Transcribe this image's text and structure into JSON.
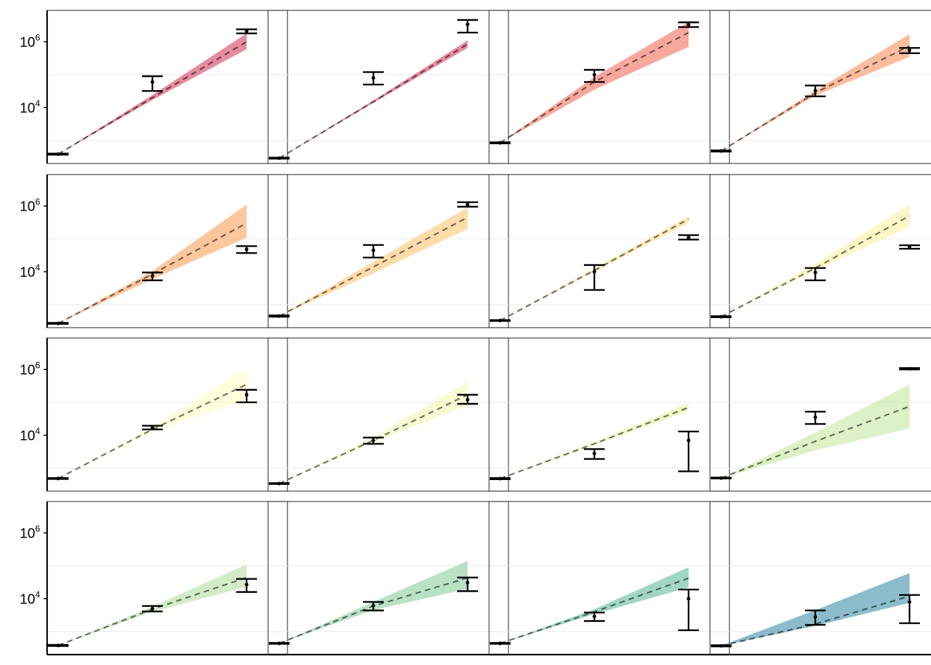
{
  "chart_data": {
    "type": "scatter",
    "layout": "4x4 facet grid",
    "y_scale": "log10",
    "ylim": [
      200,
      9000000
    ],
    "y_ticks": [
      {
        "value": 10000,
        "base": "10",
        "exp": "4"
      },
      {
        "value": 1000000,
        "base": "10",
        "exp": "6"
      }
    ],
    "x_positions": [
      1,
      2,
      3
    ],
    "grid": "minor horizontal at 1e3, 1e5",
    "panels": [
      {
        "color": "#d6405e",
        "fit": [
          385,
          20000,
          1000000
        ],
        "band_lo": [
          385,
          17000,
          600000
        ],
        "band_hi": [
          385,
          24000,
          1800000
        ],
        "points": [
          {
            "x": 1,
            "y": 385,
            "lo": 370,
            "hi": 400
          },
          {
            "x": 2,
            "y": 60000,
            "lo": 32000,
            "hi": 90000
          },
          {
            "x": 3,
            "y": 2100000,
            "lo": 1800000,
            "hi": 2400000
          }
        ]
      },
      {
        "color": "#d6405e",
        "fit": [
          290,
          15000,
          850000
        ],
        "band_lo": [
          290,
          14000,
          650000
        ],
        "band_hi": [
          290,
          16500,
          1100000
        ],
        "points": [
          {
            "x": 1,
            "y": 290,
            "lo": 280,
            "hi": 300
          },
          {
            "x": 2,
            "y": 80000,
            "lo": 50000,
            "hi": 120000
          },
          {
            "x": 3,
            "y": 3400000,
            "lo": 1900000,
            "hi": 4600000
          }
        ]
      },
      {
        "color": "#f26e5a",
        "fit": [
          850,
          60000,
          1900000
        ],
        "band_lo": [
          850,
          35000,
          700000
        ],
        "band_hi": [
          850,
          85000,
          4000000
        ],
        "points": [
          {
            "x": 1,
            "y": 850,
            "lo": 820,
            "hi": 880
          },
          {
            "x": 2,
            "y": 100000,
            "lo": 60000,
            "hi": 140000
          },
          {
            "x": 3,
            "y": 3300000,
            "lo": 2800000,
            "hi": 3900000
          }
        ]
      },
      {
        "color": "#f7915c",
        "fit": [
          480,
          28000,
          750000
        ],
        "band_lo": [
          480,
          23000,
          350000
        ],
        "band_hi": [
          480,
          33000,
          1700000
        ],
        "points": [
          {
            "x": 1,
            "y": 480,
            "lo": 460,
            "hi": 500
          },
          {
            "x": 2,
            "y": 33000,
            "lo": 22000,
            "hi": 47000
          },
          {
            "x": 3,
            "y": 550000,
            "lo": 450000,
            "hi": 650000
          }
        ]
      },
      {
        "color": "#fba25c",
        "fit": [
          270,
          8500,
          300000
        ],
        "band_lo": [
          270,
          6000,
          110000
        ],
        "band_hi": [
          270,
          10500,
          1100000
        ],
        "points": [
          {
            "x": 1,
            "y": 270,
            "lo": 260,
            "hi": 280
          },
          {
            "x": 2,
            "y": 7500,
            "lo": 5500,
            "hi": 9500
          },
          {
            "x": 3,
            "y": 48000,
            "lo": 37000,
            "hi": 60000
          }
        ]
      },
      {
        "color": "#fdc473",
        "fit": [
          450,
          14000,
          450000
        ],
        "band_lo": [
          450,
          9000,
          200000
        ],
        "band_hi": [
          450,
          20000,
          900000
        ],
        "points": [
          {
            "x": 1,
            "y": 450,
            "lo": 430,
            "hi": 470
          },
          {
            "x": 2,
            "y": 45000,
            "lo": 27000,
            "hi": 65000
          },
          {
            "x": 3,
            "y": 1100000,
            "lo": 950000,
            "hi": 1300000
          }
        ]
      },
      {
        "color": "#fee08b",
        "fit": [
          330,
          11000,
          400000
        ],
        "band_lo": [
          330,
          10000,
          300000
        ],
        "band_hi": [
          330,
          12500,
          480000
        ],
        "points": [
          {
            "x": 1,
            "y": 330,
            "lo": 320,
            "hi": 340
          },
          {
            "x": 2,
            "y": 10000,
            "lo": 2800,
            "hi": 16000
          },
          {
            "x": 3,
            "y": 110000,
            "lo": 95000,
            "hi": 130000
          }
        ]
      },
      {
        "color": "#fef2a0",
        "fit": [
          430,
          13000,
          500000
        ],
        "band_lo": [
          430,
          11000,
          230000
        ],
        "band_hi": [
          430,
          17000,
          1100000
        ],
        "points": [
          {
            "x": 1,
            "y": 430,
            "lo": 415,
            "hi": 445
          },
          {
            "x": 2,
            "y": 9500,
            "lo": 5500,
            "hi": 13000
          },
          {
            "x": 3,
            "y": 57000,
            "lo": 50000,
            "hi": 64000
          }
        ]
      },
      {
        "color": "#fffdc2",
        "fit": [
          485,
          15000,
          350000
        ],
        "band_lo": [
          485,
          13000,
          120000
        ],
        "band_hi": [
          485,
          18000,
          1050000
        ],
        "points": [
          {
            "x": 1,
            "y": 485,
            "lo": 470,
            "hi": 500
          },
          {
            "x": 2,
            "y": 17000,
            "lo": 15000,
            "hi": 19500
          },
          {
            "x": 3,
            "y": 170000,
            "lo": 100000,
            "hi": 240000
          }
        ]
      },
      {
        "color": "#f1f9b3",
        "fit": [
          340,
          7000,
          170000
        ],
        "band_lo": [
          340,
          6000,
          80000
        ],
        "band_hi": [
          340,
          8500,
          420000
        ],
        "points": [
          {
            "x": 1,
            "y": 340,
            "lo": 330,
            "hi": 350
          },
          {
            "x": 2,
            "y": 7000,
            "lo": 5500,
            "hi": 8500
          },
          {
            "x": 3,
            "y": 120000,
            "lo": 90000,
            "hi": 170000
          }
        ]
      },
      {
        "color": "#e2f3a2",
        "fit": [
          480,
          5500,
          70000
        ],
        "band_lo": [
          480,
          5000,
          55000
        ],
        "band_hi": [
          480,
          6200,
          95000
        ],
        "points": [
          {
            "x": 1,
            "y": 480,
            "lo": 460,
            "hi": 500
          },
          {
            "x": 2,
            "y": 2800,
            "lo": 1900,
            "hi": 3800
          },
          {
            "x": 3,
            "y": 7000,
            "lo": 800,
            "hi": 13000
          }
        ]
      },
      {
        "color": "#c5e8a0",
        "fit": [
          500,
          6500,
          75000
        ],
        "band_lo": [
          500,
          3500,
          16000
        ],
        "band_hi": [
          500,
          12000,
          350000
        ],
        "points": [
          {
            "x": 1,
            "y": 500,
            "lo": 485,
            "hi": 515
          },
          {
            "x": 2,
            "y": 35000,
            "lo": 22000,
            "hi": 52000
          },
          {
            "x": 3,
            "y": 1050000,
            "lo": 1000000,
            "hi": 1100000
          }
        ]
      },
      {
        "color": "#b6e0a4",
        "fit": [
          380,
          4800,
          44000
        ],
        "band_lo": [
          380,
          4000,
          23000
        ],
        "band_hi": [
          380,
          5800,
          110000
        ],
        "points": [
          {
            "x": 1,
            "y": 380,
            "lo": 365,
            "hi": 395
          },
          {
            "x": 2,
            "y": 5000,
            "lo": 4100,
            "hi": 6000
          },
          {
            "x": 3,
            "y": 27000,
            "lo": 16000,
            "hi": 40000
          }
        ]
      },
      {
        "color": "#8cce9e",
        "fit": [
          440,
          6000,
          43000
        ],
        "band_lo": [
          440,
          4500,
          20000
        ],
        "band_hi": [
          440,
          8000,
          140000
        ],
        "points": [
          {
            "x": 1,
            "y": 440,
            "lo": 425,
            "hi": 455
          },
          {
            "x": 2,
            "y": 6200,
            "lo": 4400,
            "hi": 8000
          },
          {
            "x": 3,
            "y": 31000,
            "lo": 17000,
            "hi": 44000
          }
        ]
      },
      {
        "color": "#63bc99",
        "fit": [
          440,
          4000,
          42000
        ],
        "band_lo": [
          440,
          3400,
          22000
        ],
        "band_hi": [
          440,
          4800,
          90000
        ],
        "points": [
          {
            "x": 1,
            "y": 440,
            "lo": 425,
            "hi": 455
          },
          {
            "x": 2,
            "y": 2900,
            "lo": 2100,
            "hi": 3800
          },
          {
            "x": 3,
            "y": 10000,
            "lo": 1100,
            "hi": 19000
          }
        ]
      },
      {
        "color": "#3f8fa9",
        "fit": [
          370,
          1700,
          12000
        ],
        "band_lo": [
          370,
          1500,
          7500
        ],
        "band_hi": [
          370,
          4500,
          60000
        ],
        "points": [
          {
            "x": 1,
            "y": 370,
            "lo": 355,
            "hi": 385
          },
          {
            "x": 2,
            "y": 2800,
            "lo": 1600,
            "hi": 4400
          },
          {
            "x": 3,
            "y": 8000,
            "lo": 1800,
            "hi": 13000
          }
        ]
      }
    ]
  }
}
